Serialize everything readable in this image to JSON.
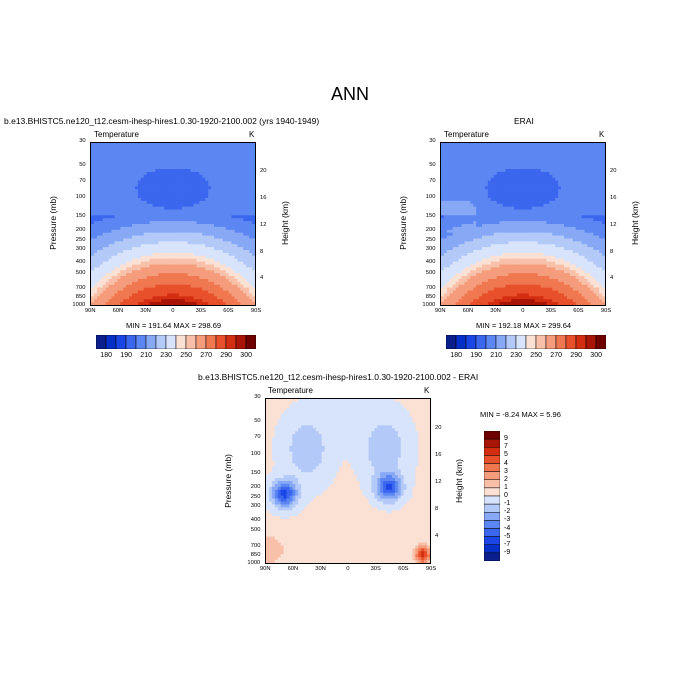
{
  "page_title": "ANN",
  "chart_data": [
    {
      "type": "heatmap",
      "id": "model",
      "title": "b.e13.BHISTC5.ne120_t12.cesm-ihesp-hires1.0.30-1920-2100.002 (yrs 1940-1949)",
      "variable": "Temperature",
      "units": "K",
      "ylabel": "Pressure (mb)",
      "y2label": "Height (km)",
      "x_ticks": [
        "90N",
        "60N",
        "30N",
        "0",
        "30S",
        "60S",
        "90S"
      ],
      "y_ticks": [
        "30",
        "50",
        "70",
        "100",
        "150",
        "200",
        "250",
        "300",
        "400",
        "500",
        "700",
        "850",
        "1000"
      ],
      "height_ticks": [
        "20",
        "16",
        "12",
        "8",
        "4"
      ],
      "stats": "MIN = 191.64   MAX = 298.69",
      "min": 191.64,
      "max": 298.69,
      "colorbar_labels": [
        "180",
        "190",
        "210",
        "230",
        "250",
        "270",
        "290",
        "300"
      ]
    },
    {
      "type": "heatmap",
      "id": "obs",
      "title": "ERAI",
      "variable": "Temperature",
      "units": "K",
      "ylabel": "Pressure (mb)",
      "y2label": "Height (km)",
      "x_ticks": [
        "90N",
        "60N",
        "30N",
        "0",
        "30S",
        "60S",
        "90S"
      ],
      "y_ticks": [
        "30",
        "50",
        "70",
        "100",
        "150",
        "200",
        "250",
        "300",
        "400",
        "500",
        "700",
        "850",
        "1000"
      ],
      "height_ticks": [
        "20",
        "16",
        "12",
        "8",
        "4"
      ],
      "stats": "MIN = 192.18   MAX = 299.64",
      "min": 192.18,
      "max": 299.64,
      "colorbar_labels": [
        "180",
        "190",
        "210",
        "230",
        "250",
        "270",
        "290",
        "300"
      ]
    },
    {
      "type": "heatmap",
      "id": "diff",
      "title": "b.e13.BHISTC5.ne120_t12.cesm-ihesp-hires1.0.30-1920-2100.002 - ERAI",
      "variable": "Temperature",
      "units": "K",
      "ylabel": "Pressure (mb)",
      "y2label": "Height (km)",
      "x_ticks": [
        "90N",
        "60N",
        "30N",
        "0",
        "30S",
        "60S",
        "90S"
      ],
      "y_ticks": [
        "30",
        "50",
        "70",
        "100",
        "150",
        "200",
        "250",
        "300",
        "400",
        "500",
        "700",
        "850",
        "1000"
      ],
      "height_ticks": [
        "20",
        "16",
        "12",
        "8",
        "4"
      ],
      "stats": "MIN =  -8.24   MAX =   5.96",
      "min": -8.24,
      "max": 5.96,
      "colorbar_labels": [
        "9",
        "7",
        "5",
        "4",
        "3",
        "2",
        "1",
        "0",
        "-1",
        "-2",
        "-3",
        "-4",
        "-5",
        "-7",
        "-9"
      ]
    }
  ],
  "colors": {
    "abs_scale": [
      "#0a1e8c",
      "#0530c8",
      "#1a46e6",
      "#3b66ee",
      "#5c86f2",
      "#86a8f5",
      "#b3c9f8",
      "#d8e4fb",
      "#fbe0d4",
      "#f8c0a8",
      "#f59c7c",
      "#f07850",
      "#e8502c",
      "#d42e12",
      "#a81406",
      "#6e0000"
    ],
    "diff_scale": [
      "#6e0000",
      "#a81406",
      "#d42e12",
      "#e8502c",
      "#f07850",
      "#f59c7c",
      "#f8c0a8",
      "#fbe0d4",
      "#d8e4fb",
      "#b3c9f8",
      "#86a8f5",
      "#5c86f2",
      "#3b66ee",
      "#1a46e6",
      "#0530c8",
      "#0a1e8c"
    ]
  }
}
